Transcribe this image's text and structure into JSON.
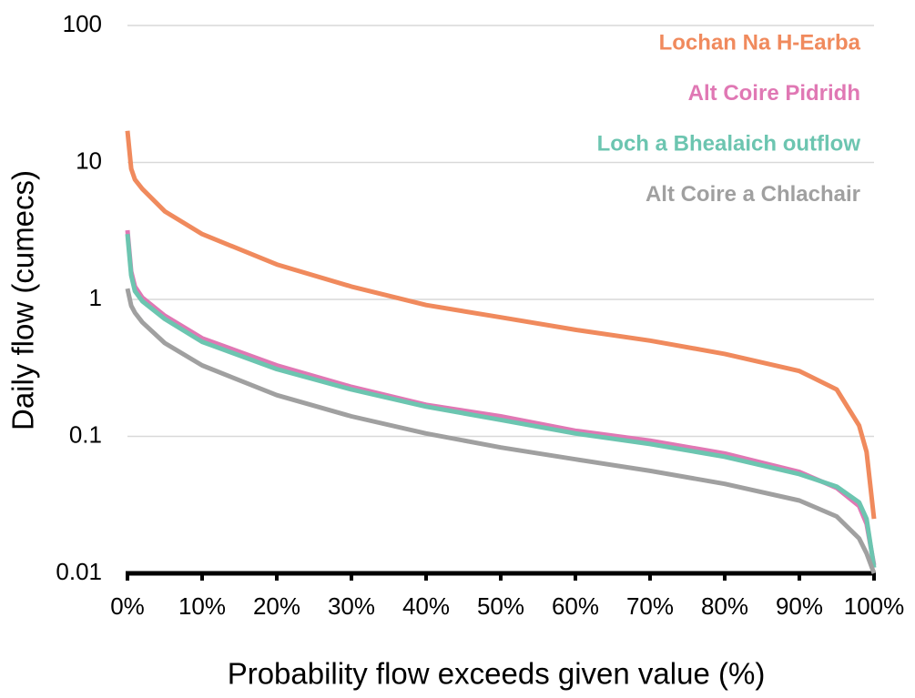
{
  "chart_data": {
    "type": "line",
    "x_label": "Probability flow exceeds given value (%)",
    "y_label": "Daily flow (cumecs)",
    "x": [
      0,
      0.5,
      1,
      2,
      5,
      10,
      20,
      30,
      40,
      50,
      60,
      70,
      80,
      90,
      95,
      98,
      99,
      100
    ],
    "series": [
      {
        "name": "Lochan Na H-Earba",
        "color": "#f08a5d",
        "values": [
          17,
          9,
          7.5,
          6.4,
          4.4,
          3.0,
          1.8,
          1.24,
          0.91,
          0.74,
          0.6,
          0.5,
          0.4,
          0.3,
          0.22,
          0.12,
          0.077,
          0.025
        ]
      },
      {
        "name": "Alt Coire Pidridh",
        "color": "#e078b4",
        "values": [
          3.2,
          1.6,
          1.24,
          1.03,
          0.76,
          0.52,
          0.33,
          0.23,
          0.17,
          0.14,
          0.11,
          0.093,
          0.075,
          0.055,
          0.042,
          0.031,
          0.023,
          0.0115
        ]
      },
      {
        "name": "Loch a Bhealaich outflow",
        "color": "#6cc5b0",
        "values": [
          3.0,
          1.5,
          1.15,
          0.97,
          0.72,
          0.49,
          0.31,
          0.22,
          0.165,
          0.132,
          0.105,
          0.088,
          0.071,
          0.053,
          0.043,
          0.033,
          0.025,
          0.011
        ]
      },
      {
        "name": "Alt Coire a Chlachair",
        "color": "#a0a0a0",
        "values": [
          1.2,
          0.9,
          0.8,
          0.68,
          0.48,
          0.33,
          0.2,
          0.14,
          0.105,
          0.083,
          0.068,
          0.056,
          0.045,
          0.034,
          0.026,
          0.018,
          0.014,
          0.01
        ]
      }
    ],
    "xlim": [
      0,
      100
    ],
    "xticks": [
      {
        "value": 0,
        "label": "0%"
      },
      {
        "value": 10,
        "label": "10%"
      },
      {
        "value": 20,
        "label": "20%"
      },
      {
        "value": 30,
        "label": "30%"
      },
      {
        "value": 40,
        "label": "40%"
      },
      {
        "value": 50,
        "label": "50%"
      },
      {
        "value": 60,
        "label": "60%"
      },
      {
        "value": 70,
        "label": "70%"
      },
      {
        "value": 80,
        "label": "80%"
      },
      {
        "value": 90,
        "label": "90%"
      },
      {
        "value": 100,
        "label": "100%"
      }
    ],
    "ylim": [
      0.01,
      100
    ],
    "yticks": [
      0.01,
      0.1,
      1,
      10,
      100
    ],
    "log_y": true,
    "grid": true,
    "legend": "top-right"
  }
}
